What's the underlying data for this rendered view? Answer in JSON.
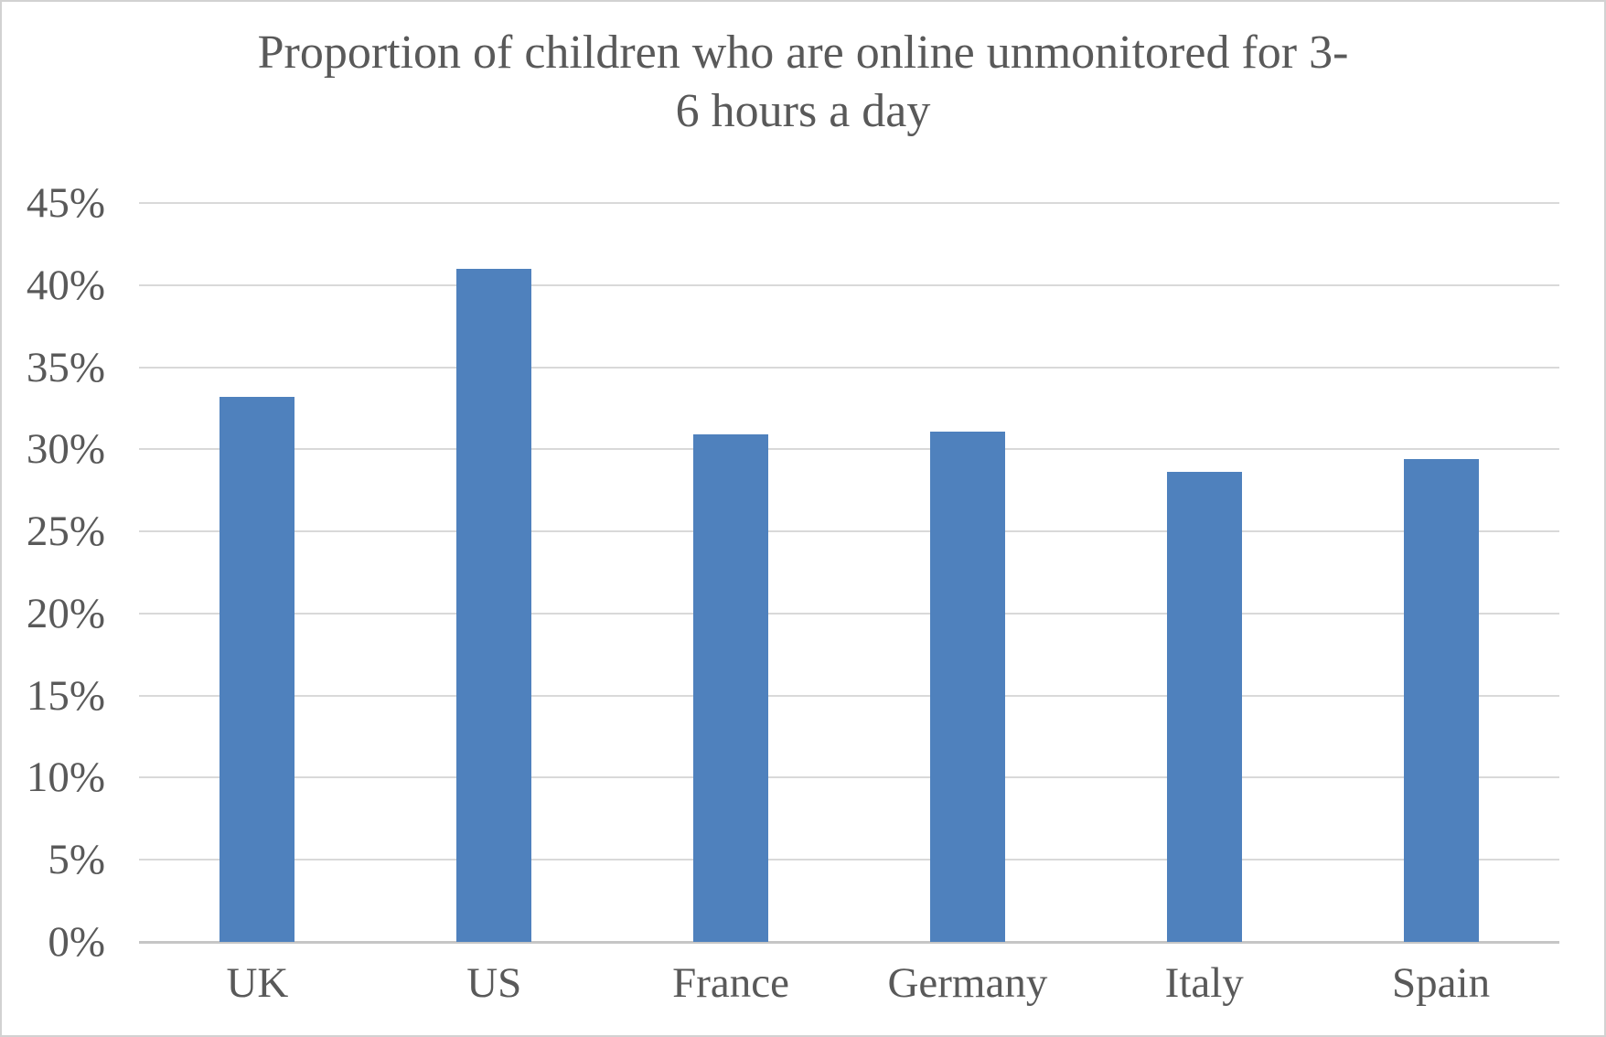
{
  "title_lines": [
    "Proportion of children who are online unmonitored for 3-",
    "6 hours a day"
  ],
  "colors": {
    "bar": "#4F81BD",
    "gridline": "#D9D9D9",
    "axis_line": "#C6C6C6",
    "text": "#595959",
    "frame_border": "#D2D2D2",
    "background": "#FFFFFF"
  },
  "chart_data": {
    "type": "bar",
    "title": "Proportion of children who are online unmonitored for 3-6 hours a day",
    "categories": [
      "UK",
      "US",
      "France",
      "Germany",
      "Italy",
      "Spain"
    ],
    "values": [
      33.2,
      41.0,
      30.9,
      31.1,
      28.6,
      29.4
    ],
    "unit": "%",
    "xlabel": "",
    "ylabel": "",
    "ylim": [
      0,
      45
    ],
    "y_tick_step": 5,
    "y_tick_labels": [
      "0%",
      "5%",
      "10%",
      "15%",
      "20%",
      "25%",
      "30%",
      "35%",
      "40%",
      "45%"
    ],
    "grid": true,
    "legend": false,
    "series_color": "#4F81BD"
  }
}
